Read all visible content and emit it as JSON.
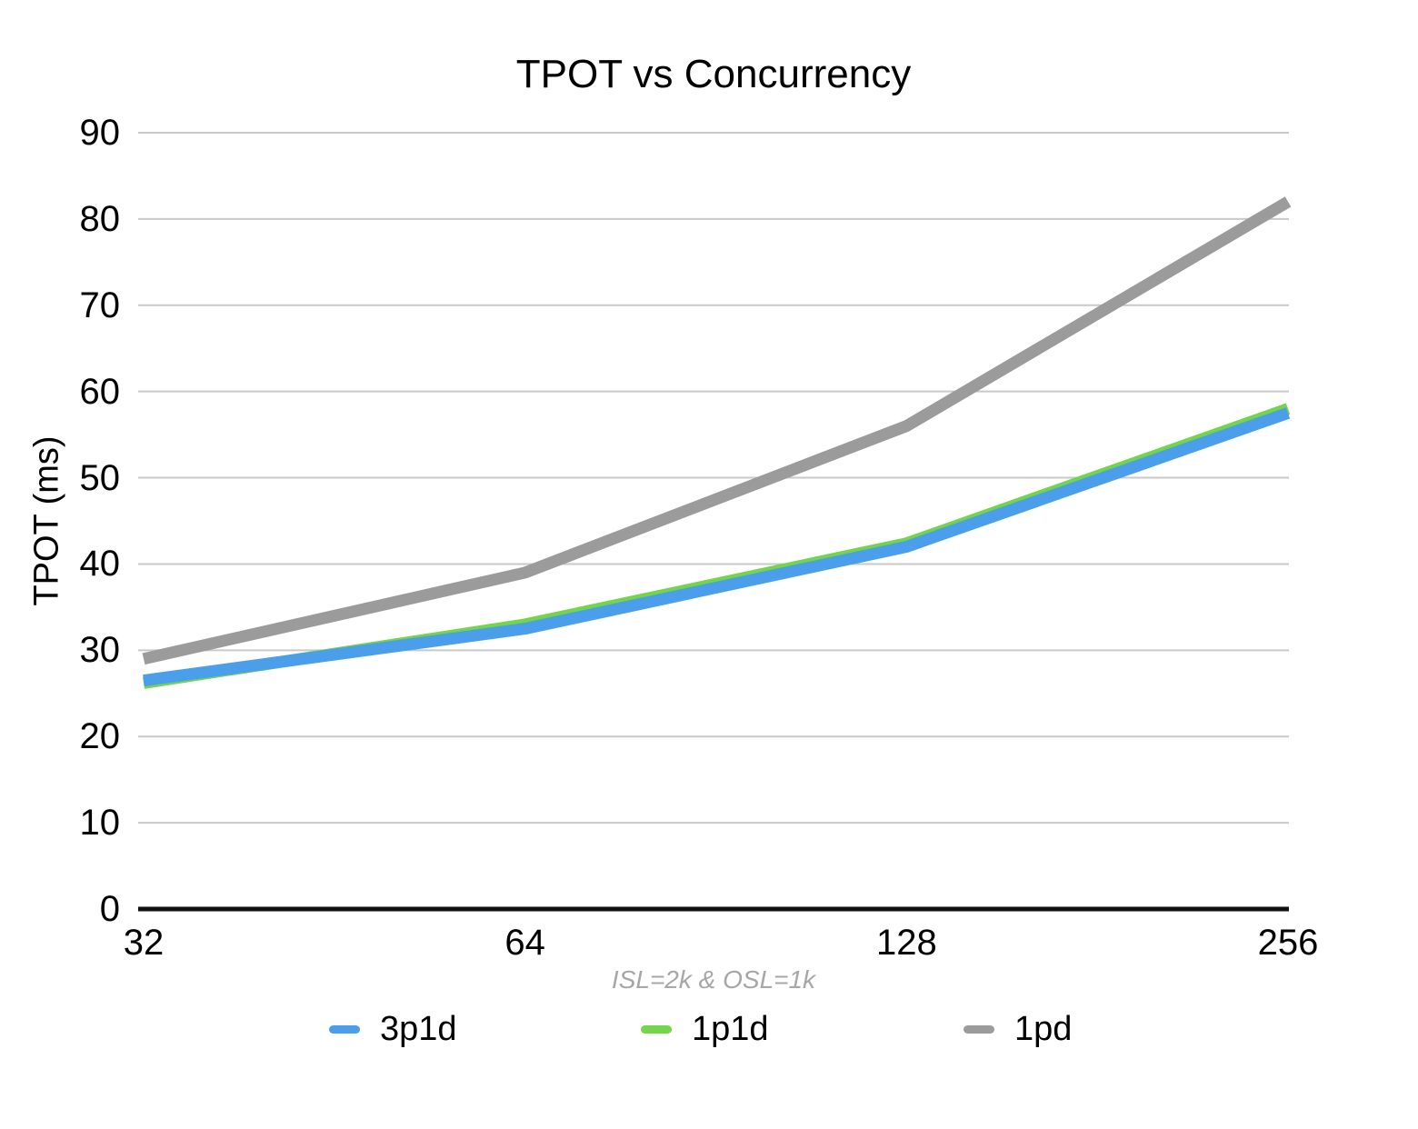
{
  "chart_data": {
    "type": "line",
    "title": "TPOT vs Concurrency",
    "xlabel": "ISL=2k & OSL=1k",
    "ylabel": "TPOT (ms)",
    "categories": [
      "32",
      "64",
      "128",
      "256"
    ],
    "y_ticks": [
      90,
      80,
      70,
      60,
      50,
      40,
      30,
      20,
      10,
      0
    ],
    "ylim": [
      0,
      90
    ],
    "grid": true,
    "legend_position": "bottom",
    "series": [
      {
        "name": "1pd",
        "color": "#9B9B9B",
        "values": [
          29,
          39,
          56,
          82
        ]
      },
      {
        "name": "1p1d",
        "color": "#73D549",
        "values": [
          26.2,
          33,
          42.4,
          58
        ]
      },
      {
        "name": "3p1d",
        "color": "#4B9EEA",
        "values": [
          26.5,
          32.5,
          42,
          57.5
        ]
      }
    ],
    "legend": [
      "3p1d",
      "1p1d",
      "1pd"
    ],
    "colors": {
      "grid": "#C9C9C9",
      "axis": "#111111",
      "subtitle": "#A7A7A7",
      "text": "#000000"
    }
  }
}
